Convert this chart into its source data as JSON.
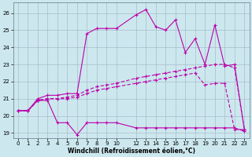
{
  "xlabel": "Windchill (Refroidissement éolien,°C)",
  "ylabel": "",
  "background_color": "#cce8ee",
  "grid_color": "#aabbcc",
  "line_color": "#bb00aa",
  "xlim": [
    -0.5,
    23.5
  ],
  "ylim": [
    18.7,
    26.6
  ],
  "yticks": [
    19,
    20,
    21,
    22,
    23,
    24,
    25,
    26
  ],
  "xticks": [
    0,
    1,
    2,
    3,
    4,
    5,
    6,
    7,
    8,
    9,
    10,
    12,
    13,
    14,
    15,
    16,
    17,
    18,
    19,
    20,
    21,
    22,
    23
  ],
  "line1_x": [
    0,
    1,
    2,
    3,
    4,
    5,
    6,
    7,
    8,
    9,
    10,
    12,
    13,
    14,
    15,
    16,
    17,
    18,
    19,
    20,
    21,
    22,
    23
  ],
  "line1_y": [
    20.3,
    20.3,
    20.9,
    20.9,
    19.6,
    19.6,
    18.9,
    19.6,
    19.6,
    19.6,
    19.6,
    19.3,
    19.3,
    19.3,
    19.3,
    19.3,
    19.3,
    19.3,
    19.3,
    19.3,
    19.3,
    19.3,
    19.1
  ],
  "line2_x": [
    0,
    1,
    2,
    3,
    4,
    5,
    6,
    7,
    8,
    9,
    10,
    12,
    13,
    14,
    15,
    16,
    17,
    18,
    19,
    20,
    21,
    22,
    23
  ],
  "line2_y": [
    20.3,
    20.3,
    21.0,
    21.2,
    21.2,
    21.3,
    21.3,
    24.8,
    25.1,
    25.1,
    25.1,
    25.9,
    26.2,
    25.2,
    25.0,
    25.6,
    23.7,
    24.5,
    23.0,
    25.3,
    22.9,
    23.0,
    19.2
  ],
  "line3_x": [
    0,
    1,
    2,
    3,
    4,
    5,
    6,
    7,
    8,
    9,
    10,
    12,
    13,
    14,
    15,
    16,
    17,
    18,
    19,
    20,
    21,
    22,
    23
  ],
  "line3_y": [
    20.3,
    20.3,
    20.9,
    21.0,
    21.0,
    21.1,
    21.2,
    21.5,
    21.7,
    21.8,
    21.9,
    22.2,
    22.3,
    22.4,
    22.5,
    22.6,
    22.7,
    22.8,
    22.9,
    23.0,
    23.0,
    22.8,
    19.2
  ],
  "line4_x": [
    0,
    1,
    2,
    3,
    4,
    5,
    6,
    7,
    8,
    9,
    10,
    12,
    13,
    14,
    15,
    16,
    17,
    18,
    19,
    20,
    21,
    22,
    23
  ],
  "line4_y": [
    20.3,
    20.3,
    20.9,
    21.0,
    21.0,
    21.0,
    21.1,
    21.3,
    21.5,
    21.6,
    21.7,
    21.9,
    22.0,
    22.1,
    22.2,
    22.3,
    22.4,
    22.5,
    21.8,
    21.9,
    21.9,
    19.2,
    19.2
  ]
}
